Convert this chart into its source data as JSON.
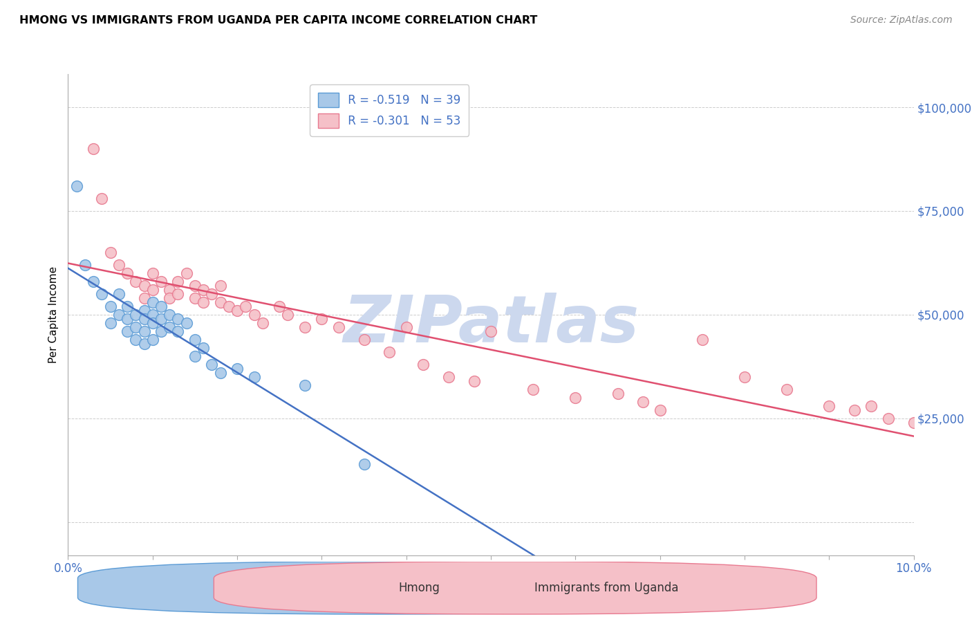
{
  "title": "HMONG VS IMMIGRANTS FROM UGANDA PER CAPITA INCOME CORRELATION CHART",
  "source": "Source: ZipAtlas.com",
  "ylabel": "Per Capita Income",
  "xlim": [
    0.0,
    0.1
  ],
  "ylim": [
    -5000,
    110000
  ],
  "plot_ylim": [
    0,
    105000
  ],
  "yticks": [
    0,
    25000,
    50000,
    75000,
    100000
  ],
  "ytick_labels": [
    "",
    "$25,000",
    "$50,000",
    "$75,000",
    "$100,000"
  ],
  "xticks": [
    0.0,
    0.01,
    0.02,
    0.03,
    0.04,
    0.05,
    0.06,
    0.07,
    0.08,
    0.09,
    0.1
  ],
  "hmong_color": "#a8c8e8",
  "hmong_edge_color": "#5b9bd5",
  "uganda_color": "#f5c0c8",
  "uganda_edge_color": "#e87a90",
  "line_hmong_color": "#4472c4",
  "line_uganda_color": "#e05070",
  "watermark_color": "#ccd8ee",
  "legend_text_color": "#4472c4",
  "right_axis_color": "#4472c4",
  "hmong_x": [
    0.001,
    0.002,
    0.003,
    0.004,
    0.005,
    0.005,
    0.006,
    0.006,
    0.007,
    0.007,
    0.007,
    0.008,
    0.008,
    0.008,
    0.009,
    0.009,
    0.009,
    0.009,
    0.01,
    0.01,
    0.01,
    0.01,
    0.011,
    0.011,
    0.011,
    0.012,
    0.012,
    0.013,
    0.013,
    0.014,
    0.015,
    0.015,
    0.016,
    0.017,
    0.018,
    0.02,
    0.022,
    0.028,
    0.035
  ],
  "hmong_y": [
    81000,
    62000,
    58000,
    55000,
    52000,
    48000,
    55000,
    50000,
    52000,
    49000,
    46000,
    50000,
    47000,
    44000,
    51000,
    49000,
    46000,
    43000,
    53000,
    50000,
    48000,
    44000,
    52000,
    49000,
    46000,
    50000,
    47000,
    49000,
    46000,
    48000,
    44000,
    40000,
    42000,
    38000,
    36000,
    37000,
    35000,
    33000,
    14000
  ],
  "uganda_x": [
    0.003,
    0.004,
    0.005,
    0.006,
    0.007,
    0.008,
    0.009,
    0.009,
    0.01,
    0.01,
    0.011,
    0.012,
    0.012,
    0.013,
    0.013,
    0.014,
    0.015,
    0.015,
    0.016,
    0.016,
    0.017,
    0.018,
    0.018,
    0.019,
    0.02,
    0.021,
    0.022,
    0.023,
    0.025,
    0.026,
    0.028,
    0.03,
    0.032,
    0.035,
    0.038,
    0.04,
    0.042,
    0.045,
    0.048,
    0.05,
    0.055,
    0.06,
    0.065,
    0.068,
    0.07,
    0.075,
    0.08,
    0.085,
    0.09,
    0.093,
    0.095,
    0.097,
    0.1
  ],
  "uganda_y": [
    90000,
    78000,
    65000,
    62000,
    60000,
    58000,
    57000,
    54000,
    60000,
    56000,
    58000,
    56000,
    54000,
    58000,
    55000,
    60000,
    57000,
    54000,
    56000,
    53000,
    55000,
    57000,
    53000,
    52000,
    51000,
    52000,
    50000,
    48000,
    52000,
    50000,
    47000,
    49000,
    47000,
    44000,
    41000,
    47000,
    38000,
    35000,
    34000,
    46000,
    32000,
    30000,
    31000,
    29000,
    27000,
    44000,
    35000,
    32000,
    28000,
    27000,
    28000,
    25000,
    24000
  ]
}
